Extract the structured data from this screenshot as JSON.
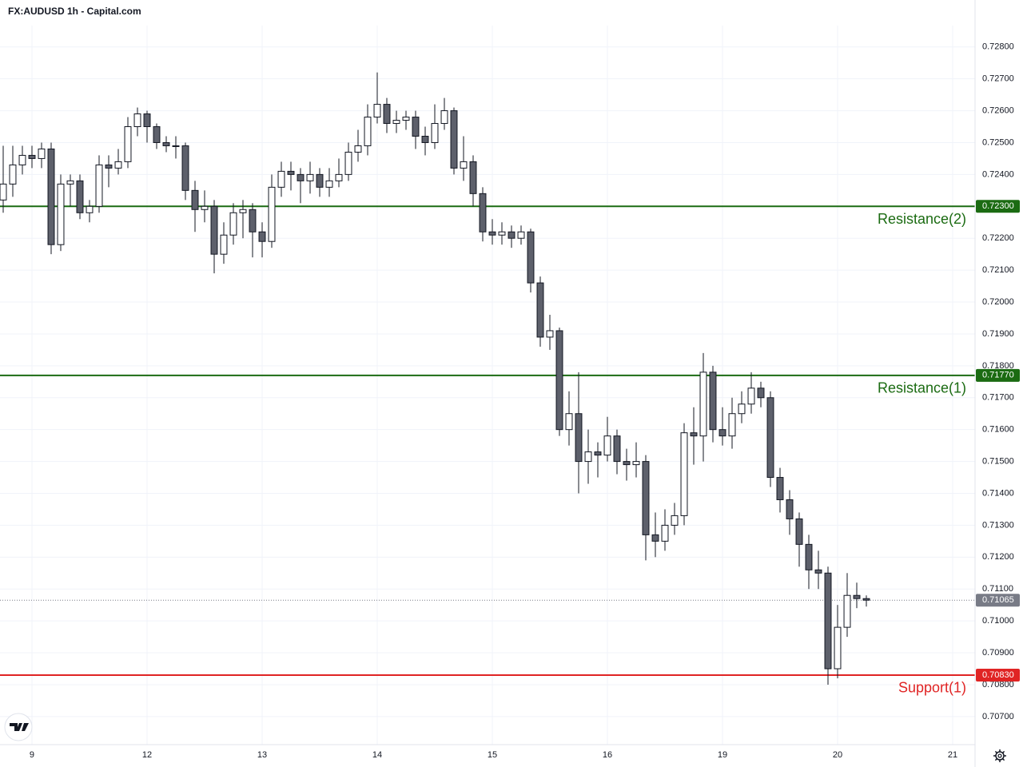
{
  "chart_data": {
    "type": "candlestick",
    "title": "FX:AUDUSD 1h - Capital.com",
    "up_color": "#ffffff",
    "down_color": "#5d606b",
    "wick_color": "#131722",
    "grid": true,
    "open": [
      0.7232,
      0.7237,
      0.7243,
      0.7246,
      0.7245,
      0.7248,
      0.7218,
      0.7237,
      0.7238,
      0.7228,
      0.723,
      0.7243,
      0.7242,
      0.7244,
      0.7255,
      0.7259,
      0.7255,
      0.725,
      0.7249,
      0.7249,
      0.7235,
      0.7229,
      0.723,
      0.7215,
      0.7221,
      0.7228,
      0.7229,
      0.7222,
      0.7219,
      0.7236,
      0.7241,
      0.724,
      0.7238,
      0.724,
      0.7236,
      0.7238,
      0.724,
      0.7247,
      0.7249,
      0.7258,
      0.7262,
      0.7256,
      0.7257,
      0.7258,
      0.7252,
      0.725,
      0.7256,
      0.726,
      0.7242,
      0.7244,
      0.7234,
      0.7222,
      0.7221,
      0.7222,
      0.722,
      0.7222,
      0.7206,
      0.7189,
      0.7191,
      0.716,
      0.7165,
      0.715,
      0.7153,
      0.7152,
      0.7158,
      0.715,
      0.7149,
      0.715,
      0.7127,
      0.7125,
      0.713,
      0.7133,
      0.7159,
      0.7158,
      0.7178,
      0.716,
      0.7158,
      0.7165,
      0.7168,
      0.7173,
      0.717,
      0.7145,
      0.7138,
      0.7132,
      0.7124,
      0.7116,
      0.7115,
      0.7085,
      0.7098,
      0.7108,
      0.7107
    ],
    "high": [
      0.7249,
      0.7249,
      0.7249,
      0.7249,
      0.725,
      0.725,
      0.724,
      0.724,
      0.724,
      0.7232,
      0.7246,
      0.7246,
      0.7248,
      0.7258,
      0.7261,
      0.726,
      0.7256,
      0.7252,
      0.7252,
      0.725,
      0.7238,
      0.7235,
      0.7232,
      0.7225,
      0.7231,
      0.7232,
      0.7231,
      0.7225,
      0.724,
      0.7244,
      0.7244,
      0.7242,
      0.7244,
      0.7242,
      0.7242,
      0.7245,
      0.725,
      0.7254,
      0.7262,
      0.7272,
      0.7264,
      0.726,
      0.726,
      0.726,
      0.7255,
      0.7262,
      0.7264,
      0.7261,
      0.7252,
      0.7246,
      0.7236,
      0.7226,
      0.7225,
      0.7224,
      0.7224,
      0.7223,
      0.7208,
      0.7196,
      0.7192,
      0.7172,
      0.7178,
      0.716,
      0.7156,
      0.7164,
      0.716,
      0.7154,
      0.7156,
      0.7152,
      0.7134,
      0.7135,
      0.7137,
      0.7162,
      0.7167,
      0.7184,
      0.718,
      0.7167,
      0.717,
      0.7172,
      0.7178,
      0.7175,
      0.7172,
      0.7148,
      0.7141,
      0.7134,
      0.7127,
      0.7122,
      0.7117,
      0.7105,
      0.7115,
      0.7112,
      0.7108
    ],
    "low": [
      0.7228,
      0.7233,
      0.724,
      0.7242,
      0.7242,
      0.7215,
      0.7216,
      0.723,
      0.7226,
      0.7225,
      0.7228,
      0.7236,
      0.724,
      0.7242,
      0.7252,
      0.725,
      0.7248,
      0.7247,
      0.7245,
      0.7232,
      0.7222,
      0.7225,
      0.7209,
      0.7212,
      0.7218,
      0.722,
      0.7214,
      0.7214,
      0.7217,
      0.7233,
      0.7235,
      0.7231,
      0.7234,
      0.7233,
      0.7233,
      0.7236,
      0.7238,
      0.7244,
      0.7246,
      0.7256,
      0.7253,
      0.7253,
      0.7254,
      0.7248,
      0.7246,
      0.7248,
      0.7254,
      0.724,
      0.7238,
      0.723,
      0.7219,
      0.7218,
      0.7218,
      0.7217,
      0.7218,
      0.7203,
      0.7186,
      0.7185,
      0.7158,
      0.7155,
      0.714,
      0.7143,
      0.7145,
      0.715,
      0.7146,
      0.7144,
      0.7145,
      0.7119,
      0.712,
      0.7122,
      0.7127,
      0.713,
      0.7149,
      0.715,
      0.7156,
      0.7155,
      0.7154,
      0.7162,
      0.7165,
      0.7167,
      0.7142,
      0.7134,
      0.7127,
      0.7117,
      0.711,
      0.711,
      0.708,
      0.7082,
      0.7095,
      0.7104,
      0.71045
    ],
    "close": [
      0.7237,
      0.7243,
      0.7246,
      0.7245,
      0.7248,
      0.7218,
      0.7237,
      0.7238,
      0.7228,
      0.723,
      0.7243,
      0.7242,
      0.7244,
      0.7255,
      0.7259,
      0.7255,
      0.725,
      0.7249,
      0.7249,
      0.7235,
      0.7229,
      0.723,
      0.7215,
      0.7221,
      0.7228,
      0.7229,
      0.7222,
      0.7219,
      0.7236,
      0.7241,
      0.724,
      0.7238,
      0.724,
      0.7236,
      0.7238,
      0.724,
      0.7247,
      0.7249,
      0.7258,
      0.7262,
      0.7256,
      0.7257,
      0.7258,
      0.7252,
      0.725,
      0.7256,
      0.726,
      0.7242,
      0.7244,
      0.7234,
      0.7222,
      0.7221,
      0.7222,
      0.722,
      0.7222,
      0.7206,
      0.7189,
      0.7191,
      0.716,
      0.7165,
      0.715,
      0.7153,
      0.7152,
      0.7158,
      0.715,
      0.7149,
      0.715,
      0.7127,
      0.7125,
      0.713,
      0.7133,
      0.7159,
      0.7158,
      0.7178,
      0.716,
      0.7158,
      0.7165,
      0.7168,
      0.7173,
      0.717,
      0.7145,
      0.7138,
      0.7132,
      0.7124,
      0.7116,
      0.7115,
      0.7085,
      0.7098,
      0.7108,
      0.7107,
      0.71065
    ],
    "xlim": [
      -0.333,
      101.333
    ],
    "xticks": [
      {
        "value": 3,
        "label": "9"
      },
      {
        "value": 15,
        "label": "12"
      },
      {
        "value": 27,
        "label": "13"
      },
      {
        "value": 39,
        "label": "14"
      },
      {
        "value": 51,
        "label": "15"
      },
      {
        "value": 63,
        "label": "16"
      },
      {
        "value": 75,
        "label": "19"
      },
      {
        "value": 87,
        "label": "20"
      },
      {
        "value": 99,
        "label": "21"
      }
    ],
    "ylim": [
      0.70612,
      0.72867
    ],
    "yticks": [
      {
        "value": 0.707,
        "label": "0.70700"
      },
      {
        "value": 0.708,
        "label": "0.70800"
      },
      {
        "value": 0.709,
        "label": "0.70900"
      },
      {
        "value": 0.71,
        "label": "0.71000"
      },
      {
        "value": 0.711,
        "label": "0.71100"
      },
      {
        "value": 0.712,
        "label": "0.71200"
      },
      {
        "value": 0.713,
        "label": "0.71300"
      },
      {
        "value": 0.714,
        "label": "0.71400"
      },
      {
        "value": 0.715,
        "label": "0.71500"
      },
      {
        "value": 0.716,
        "label": "0.71600"
      },
      {
        "value": 0.717,
        "label": "0.71700"
      },
      {
        "value": 0.718,
        "label": "0.71800"
      },
      {
        "value": 0.719,
        "label": "0.71900"
      },
      {
        "value": 0.72,
        "label": "0.72000"
      },
      {
        "value": 0.721,
        "label": "0.72100"
      },
      {
        "value": 0.722,
        "label": "0.72200"
      },
      {
        "value": 0.723,
        "label": "0.72300"
      },
      {
        "value": 0.724,
        "label": "0.72400"
      },
      {
        "value": 0.725,
        "label": "0.72500"
      },
      {
        "value": 0.726,
        "label": "0.72600"
      },
      {
        "value": 0.727,
        "label": "0.72700"
      },
      {
        "value": 0.728,
        "label": "0.72800"
      }
    ],
    "levels": [
      {
        "name": "Resistance(2)",
        "value": 0.723,
        "label": "0.72300",
        "color": "#1b6b12"
      },
      {
        "name": "Resistance(1)",
        "value": 0.7177,
        "label": "0.71770",
        "color": "#1b6b12"
      },
      {
        "name": "Support(1)",
        "value": 0.7083,
        "label": "0.70830",
        "color": "#e02424"
      }
    ],
    "last_price": {
      "value": 0.71065,
      "label": "0.71065",
      "color": "#787b86"
    }
  }
}
